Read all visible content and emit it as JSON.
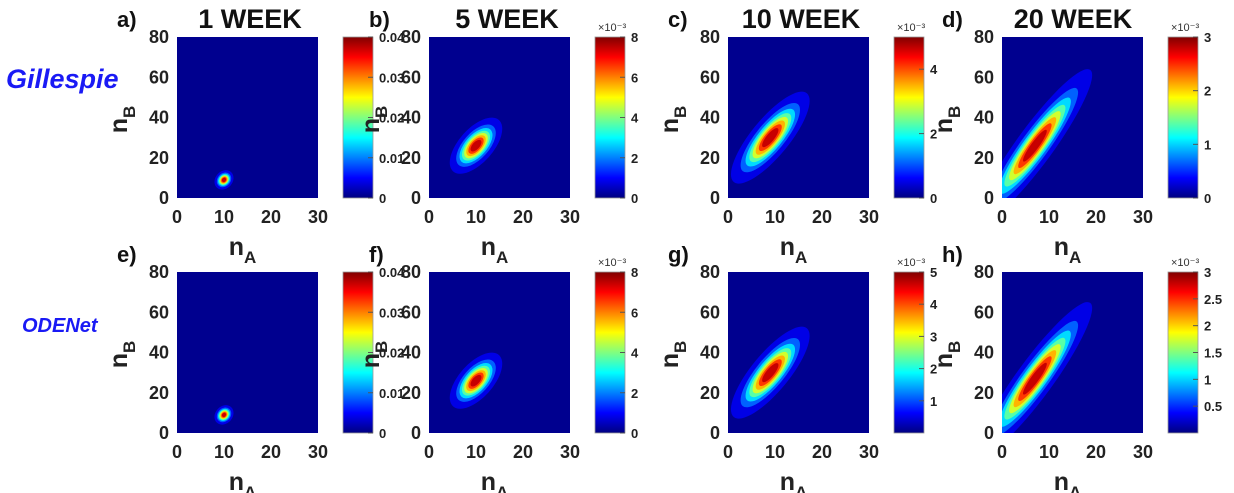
{
  "figure": {
    "column_titles": [
      "1 WEEK",
      "5 WEEK",
      "10 WEEK",
      "20 WEEK"
    ],
    "row_labels": [
      "Gillespie",
      "ODENet"
    ],
    "row_label_color": "#1a1af5",
    "plot_background": "#00008f",
    "colormap": "jet"
  },
  "chart_data": [
    {
      "type": "heatmap",
      "panel": "a)",
      "title": "1 WEEK",
      "method": "Gillespie",
      "xlabel": "n_A",
      "ylabel": "n_B",
      "xlim": [
        0,
        30
      ],
      "ylim": [
        0,
        80
      ],
      "xticks": [
        "0",
        "10",
        "20",
        "30"
      ],
      "yticks": [
        "0",
        "20",
        "40",
        "60",
        "80"
      ],
      "colorbar": {
        "range": [
          0,
          0.04
        ],
        "ticks": [
          "0",
          "0.01",
          "0.02",
          "0.03",
          "0.04"
        ],
        "multiplier": ""
      },
      "distribution": {
        "peak_nA": 10,
        "peak_nB": 9,
        "peak_value": 0.04,
        "sd_nA": 0.8,
        "sd_nB": 1.9,
        "correlation": 0.2
      }
    },
    {
      "type": "heatmap",
      "panel": "b)",
      "title": "5 WEEK",
      "method": "Gillespie",
      "xlabel": "n_A",
      "ylabel": "n_B",
      "xlim": [
        0,
        30
      ],
      "ylim": [
        0,
        80
      ],
      "xticks": [
        "0",
        "10",
        "20",
        "30"
      ],
      "yticks": [
        "0",
        "20",
        "40",
        "60",
        "80"
      ],
      "colorbar": {
        "range": [
          0,
          8
        ],
        "ticks": [
          "0",
          "2",
          "4",
          "6",
          "8"
        ],
        "multiplier": "×10⁻³"
      },
      "distribution": {
        "peak_nA": 10,
        "peak_nB": 26,
        "peak_value": 8,
        "sd_nA": 2.2,
        "sd_nB": 5.5,
        "correlation": 0.6
      }
    },
    {
      "type": "heatmap",
      "panel": "c)",
      "title": "10 WEEK",
      "method": "Gillespie",
      "xlabel": "n_A",
      "ylabel": "n_B",
      "xlim": [
        0,
        30
      ],
      "ylim": [
        0,
        80
      ],
      "xticks": [
        "0",
        "10",
        "20",
        "30"
      ],
      "yticks": [
        "0",
        "20",
        "40",
        "60",
        "80"
      ],
      "colorbar": {
        "range": [
          0,
          5
        ],
        "ticks": [
          "0",
          "2",
          "4"
        ],
        "multiplier": "×10⁻³"
      },
      "distribution": {
        "peak_nA": 9,
        "peak_nB": 30,
        "peak_value": 5,
        "sd_nA": 3.3,
        "sd_nB": 9,
        "correlation": 0.8
      }
    },
    {
      "type": "heatmap",
      "panel": "d)",
      "title": "20 WEEK",
      "method": "Gillespie",
      "xlabel": "n_A",
      "ylabel": "n_B",
      "xlim": [
        0,
        30
      ],
      "ylim": [
        0,
        80
      ],
      "xticks": [
        "0",
        "10",
        "20",
        "30"
      ],
      "yticks": [
        "0",
        "20",
        "40",
        "60",
        "80"
      ],
      "colorbar": {
        "range": [
          0,
          3
        ],
        "ticks": [
          "0",
          "1",
          "2",
          "3"
        ],
        "multiplier": "×10⁻³"
      },
      "distribution": {
        "peak_nA": 7,
        "peak_nB": 26,
        "peak_value": 3,
        "sd_nA": 4.8,
        "sd_nB": 15,
        "correlation": 0.92
      }
    },
    {
      "type": "heatmap",
      "panel": "e)",
      "title": "1 WEEK",
      "method": "ODENet",
      "xlabel": "n_A",
      "ylabel": "n_B",
      "xlim": [
        0,
        30
      ],
      "ylim": [
        0,
        80
      ],
      "xticks": [
        "0",
        "10",
        "20",
        "30"
      ],
      "yticks": [
        "0",
        "20",
        "40",
        "60",
        "80"
      ],
      "colorbar": {
        "range": [
          0,
          0.04
        ],
        "ticks": [
          "0",
          "0.01",
          "0.02",
          "0.03",
          "0.04"
        ],
        "multiplier": ""
      },
      "distribution": {
        "peak_nA": 10,
        "peak_nB": 9,
        "peak_value": 0.04,
        "sd_nA": 0.8,
        "sd_nB": 1.9,
        "correlation": 0.2
      }
    },
    {
      "type": "heatmap",
      "panel": "f)",
      "title": "5 WEEK",
      "method": "ODENet",
      "xlabel": "n_A",
      "ylabel": "n_B",
      "xlim": [
        0,
        30
      ],
      "ylim": [
        0,
        80
      ],
      "xticks": [
        "0",
        "10",
        "20",
        "30"
      ],
      "yticks": [
        "0",
        "20",
        "40",
        "60",
        "80"
      ],
      "colorbar": {
        "range": [
          0,
          8
        ],
        "ticks": [
          "0",
          "2",
          "4",
          "6",
          "8"
        ],
        "multiplier": "×10⁻³"
      },
      "distribution": {
        "peak_nA": 10,
        "peak_nB": 26,
        "peak_value": 8,
        "sd_nA": 2.2,
        "sd_nB": 5.5,
        "correlation": 0.6
      }
    },
    {
      "type": "heatmap",
      "panel": "g)",
      "title": "10 WEEK",
      "method": "ODENet",
      "xlabel": "n_A",
      "ylabel": "n_B",
      "xlim": [
        0,
        30
      ],
      "ylim": [
        0,
        80
      ],
      "xticks": [
        "0",
        "10",
        "20",
        "30"
      ],
      "yticks": [
        "0",
        "20",
        "40",
        "60",
        "80"
      ],
      "colorbar": {
        "range": [
          0,
          5
        ],
        "ticks": [
          "1",
          "2",
          "3",
          "4",
          "5"
        ],
        "multiplier": "×10⁻³"
      },
      "distribution": {
        "peak_nA": 9,
        "peak_nB": 30,
        "peak_value": 5,
        "sd_nA": 3.3,
        "sd_nB": 9,
        "correlation": 0.8
      }
    },
    {
      "type": "heatmap",
      "panel": "h)",
      "title": "20 WEEK",
      "method": "ODENet",
      "xlabel": "n_A",
      "ylabel": "n_B",
      "xlim": [
        0,
        30
      ],
      "ylim": [
        0,
        80
      ],
      "xticks": [
        "0",
        "10",
        "20",
        "30"
      ],
      "yticks": [
        "0",
        "20",
        "40",
        "60",
        "80"
      ],
      "colorbar": {
        "range": [
          0,
          3
        ],
        "ticks": [
          "0.5",
          "1",
          "1.5",
          "2",
          "2.5",
          "3"
        ],
        "multiplier": "×10⁻³"
      },
      "distribution": {
        "peak_nA": 7,
        "peak_nB": 27,
        "peak_value": 3,
        "sd_nA": 4.8,
        "sd_nB": 15,
        "correlation": 0.92
      }
    }
  ]
}
